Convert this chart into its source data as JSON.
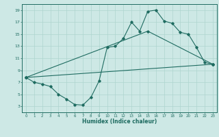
{
  "xlabel": "Humidex (Indice chaleur)",
  "xlim": [
    -0.5,
    23.5
  ],
  "ylim": [
    2,
    20
  ],
  "xticks": [
    0,
    1,
    2,
    3,
    4,
    5,
    6,
    7,
    8,
    9,
    10,
    11,
    12,
    13,
    14,
    15,
    16,
    17,
    18,
    19,
    20,
    21,
    22,
    23
  ],
  "yticks": [
    3,
    5,
    7,
    9,
    11,
    13,
    15,
    17,
    19
  ],
  "bg_color": "#cde8e5",
  "line_color": "#1e6b60",
  "grid_color": "#aed4cf",
  "line1_x": [
    0,
    1,
    2,
    3,
    4,
    5,
    6,
    7,
    8,
    9,
    10,
    11,
    12,
    13,
    14,
    15,
    16,
    17,
    18,
    19,
    20,
    21,
    22,
    23
  ],
  "line1_y": [
    7.8,
    7.0,
    6.7,
    6.3,
    5.0,
    4.2,
    3.3,
    3.2,
    4.5,
    7.2,
    12.8,
    13.0,
    14.3,
    17.0,
    15.5,
    18.8,
    19.0,
    17.2,
    16.8,
    15.3,
    15.0,
    12.8,
    10.3,
    10.0
  ],
  "line2_x": [
    0,
    23
  ],
  "line2_y": [
    7.8,
    10.0
  ],
  "line3_x": [
    0,
    15,
    23
  ],
  "line3_y": [
    7.8,
    15.5,
    10.0
  ]
}
